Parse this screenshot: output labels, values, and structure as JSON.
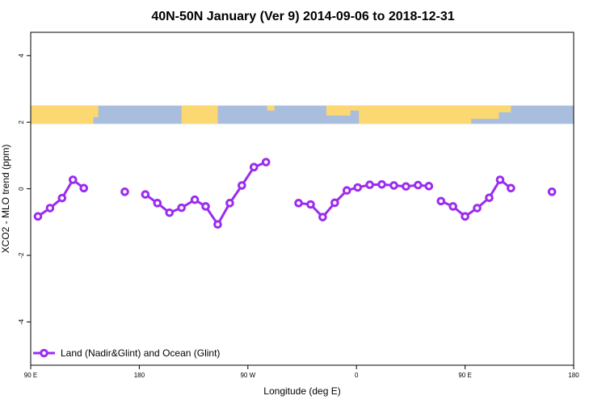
{
  "chart_data": {
    "type": "line",
    "title": "40N-50N January (Ver 9)   2014-09-06 to 2018-12-31",
    "xlabel": "Longitude (deg E)",
    "ylabel": "XCO2 - MLO trend (ppm)",
    "xlim": [
      90,
      540
    ],
    "ylim": [
      -5.3,
      4.7
    ],
    "x_ticks": [
      {
        "value": 90,
        "label": "90 E"
      },
      {
        "value": 180,
        "label": "180"
      },
      {
        "value": 270,
        "label": "90 W"
      },
      {
        "value": 360,
        "label": "0"
      },
      {
        "value": 450,
        "label": "90 E"
      },
      {
        "value": 540,
        "label": "180"
      }
    ],
    "y_ticks": [
      {
        "value": 4,
        "label": "4"
      },
      {
        "value": 2,
        "label": "2"
      },
      {
        "value": 0,
        "label": "0"
      },
      {
        "value": -2,
        "label": "-2"
      },
      {
        "value": -4,
        "label": "-4"
      }
    ],
    "map_strip": {
      "ymin": 1.95,
      "ymax": 2.5,
      "land_color": "#fbd872",
      "ocean_color": "#a9bedd"
    },
    "series": [
      {
        "name": "Land (Nadir&Glint) and Ocean (Glint)",
        "color": "#9b2cf0",
        "segments": [
          [
            [
              96,
              -0.83
            ],
            [
              106,
              -0.58
            ],
            [
              116,
              -0.28
            ],
            [
              125,
              0.27
            ],
            [
              134,
              0.02
            ]
          ],
          [
            [
              168,
              -0.09
            ]
          ],
          [
            [
              185,
              -0.17
            ],
            [
              195,
              -0.43
            ],
            [
              205,
              -0.72
            ],
            [
              215,
              -0.57
            ],
            [
              226,
              -0.33
            ],
            [
              235,
              -0.53
            ],
            [
              245,
              -1.07
            ],
            [
              255,
              -0.43
            ],
            [
              265,
              0.1
            ],
            [
              275,
              0.65
            ],
            [
              285,
              0.8
            ]
          ],
          [
            [
              312,
              -0.43
            ],
            [
              322,
              -0.47
            ],
            [
              332,
              -0.85
            ],
            [
              342,
              -0.42
            ],
            [
              352,
              -0.05
            ],
            [
              361,
              0.04
            ],
            [
              371,
              0.12
            ],
            [
              381,
              0.13
            ],
            [
              391,
              0.1
            ],
            [
              401,
              0.07
            ],
            [
              411,
              0.11
            ],
            [
              420,
              0.08
            ]
          ],
          [
            [
              430,
              -0.37
            ],
            [
              440,
              -0.53
            ],
            [
              450,
              -0.83
            ],
            [
              460,
              -0.58
            ],
            [
              470,
              -0.27
            ],
            [
              479,
              0.27
            ],
            [
              488,
              0.02
            ]
          ],
          [
            [
              522,
              -0.09
            ]
          ]
        ]
      }
    ]
  }
}
